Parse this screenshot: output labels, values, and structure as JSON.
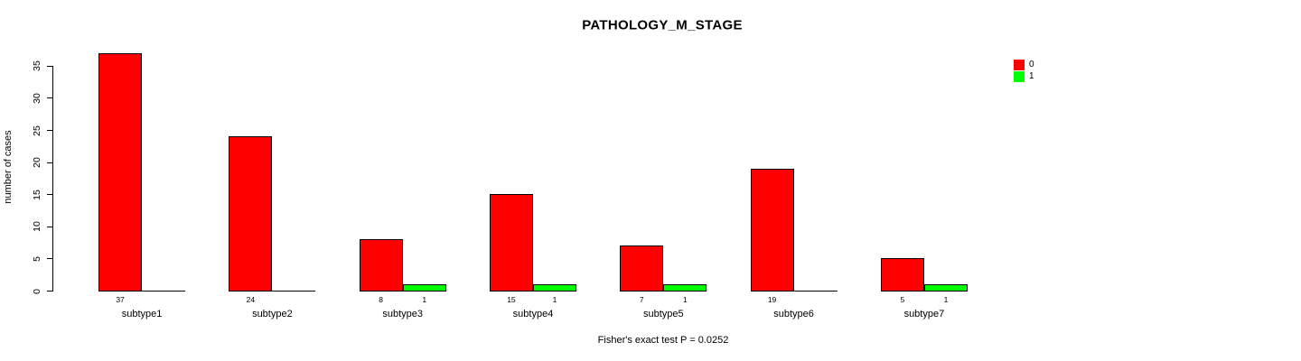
{
  "chart_data": {
    "type": "bar",
    "title": "PATHOLOGY_M_STAGE",
    "ylabel": "number of cases",
    "xlabel": "",
    "categories": [
      "subtype1",
      "subtype2",
      "subtype3",
      "subtype4",
      "subtype5",
      "subtype6",
      "subtype7"
    ],
    "series": [
      {
        "name": "0",
        "color": "#ff0000",
        "values": [
          37,
          24,
          8,
          15,
          7,
          19,
          5
        ]
      },
      {
        "name": "1",
        "color": "#00ff00",
        "values": [
          0,
          0,
          1,
          1,
          1,
          0,
          1
        ]
      }
    ],
    "bar_value_labels": {
      "series_0": [
        "37",
        "24",
        "8",
        "15",
        "7",
        "19",
        "5"
      ],
      "series_1": [
        "",
        "",
        "1",
        "1",
        "1",
        "",
        "1"
      ]
    },
    "yticks": [
      0,
      5,
      10,
      15,
      20,
      25,
      30,
      35
    ],
    "ylim": [
      0,
      38
    ],
    "grid": false,
    "legend_position": "top-right",
    "legend_entries": [
      "0",
      "1"
    ],
    "note": "Fisher's exact test P = 0.0252",
    "axis_color": "#000000",
    "bar_border_color": "#000000",
    "background_color": "#ffffff"
  }
}
